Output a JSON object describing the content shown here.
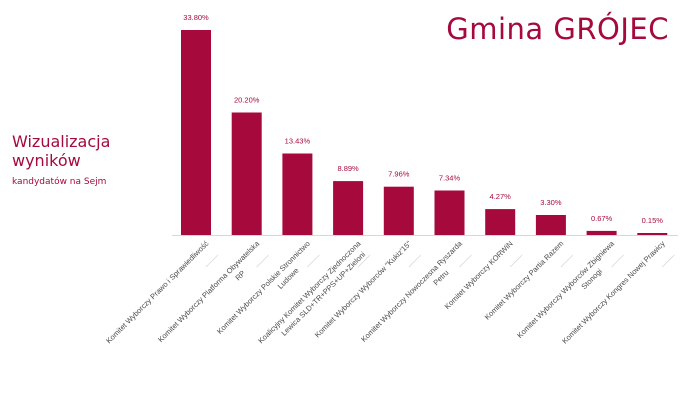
{
  "header": {
    "title": "Gmina GRÓJEC",
    "subtitle_line1": "Wizualizacja",
    "subtitle_line2": "wyników",
    "caption": "kandydatów na Sejm"
  },
  "colors": {
    "accent": "#a6093c",
    "bar": "#a6093c",
    "axis": "#d7d7d7",
    "label": "#4a4a4a"
  },
  "chart_data": {
    "type": "bar",
    "categories": [
      [
        "Komitet Wyborczy Prawo i Sprawiedliwość"
      ],
      [
        "Komitet Wyborczy Platforma Obywatelska",
        "RP"
      ],
      [
        "Komitet Wyborczy Polskie Stronnictwo",
        "Ludowe"
      ],
      [
        "Koalicyjny Komitet Wyborczy Zjednoczona",
        "Lewica SLD+TR+PPS+UP+Zieloni"
      ],
      [
        "Komitet Wyborczy Wyborców \"Kukiz'15\""
      ],
      [
        "Komitet Wyborczy Nowoczesna Ryszarda",
        "Petru"
      ],
      [
        "Komitet Wyborczy KORWiN"
      ],
      [
        "Komitet Wyborczy Partia Razem"
      ],
      [
        "Komitet Wyborczy Wyborców Zbigniewa",
        "Stonogi"
      ],
      [
        "Komitet Wyborczy Kongres Nowej Prawicy"
      ]
    ],
    "values": [
      33.8,
      20.2,
      13.43,
      8.89,
      7.96,
      7.34,
      4.27,
      3.3,
      0.67,
      0.15
    ],
    "data_labels": [
      "33.80%",
      "20.20%",
      "13.43%",
      "8.89%",
      "7.96%",
      "7.34%",
      "4.27%",
      "3.30%",
      "0.67%",
      "0.15%"
    ],
    "xlabel": "",
    "ylabel": "",
    "ylim": [
      0,
      33.8
    ],
    "grid": false,
    "legend": "none"
  }
}
